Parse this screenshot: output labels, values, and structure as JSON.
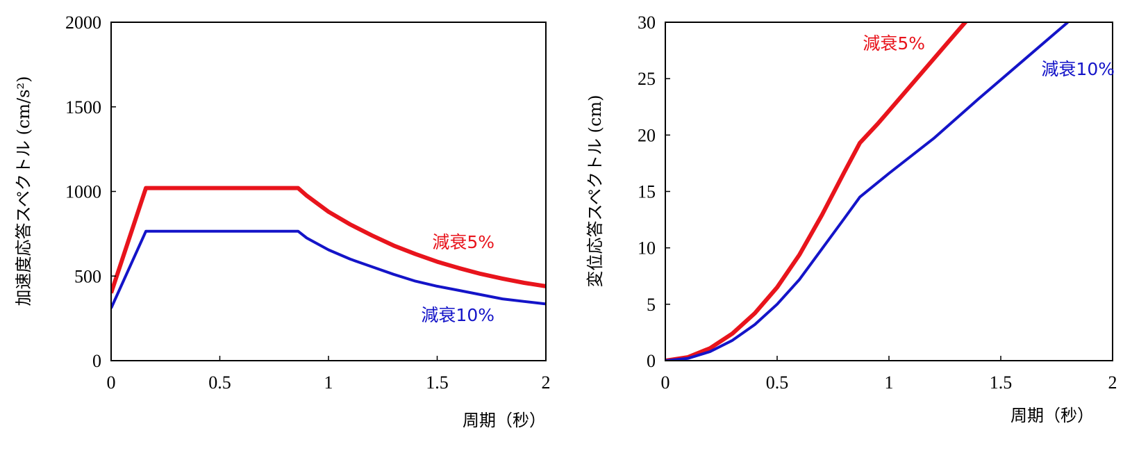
{
  "chart_data": [
    {
      "type": "line",
      "xlabel": "周期（秒）",
      "ylabel": "加速度応答スペクトル (cm/s²)",
      "xlim": [
        0,
        2
      ],
      "ylim": [
        0,
        2000
      ],
      "x_ticks": [
        "0",
        "0.5",
        "1",
        "1.5",
        "2"
      ],
      "y_ticks": [
        "0",
        "500",
        "1000",
        "1500",
        "2000"
      ],
      "grid": false,
      "legend": "inline labels",
      "series": [
        {
          "name": "減衰5%",
          "color": "#e8141c",
          "points": [
            [
              0,
              400
            ],
            [
              0.16,
              1020
            ],
            [
              0.86,
              1020
            ],
            [
              0.9,
              975
            ],
            [
              1.0,
              880
            ],
            [
              1.1,
              805
            ],
            [
              1.2,
              740
            ],
            [
              1.3,
              680
            ],
            [
              1.4,
              630
            ],
            [
              1.5,
              585
            ],
            [
              1.6,
              547
            ],
            [
              1.7,
              513
            ],
            [
              1.8,
              485
            ],
            [
              1.9,
              460
            ],
            [
              2.0,
              440
            ]
          ]
        },
        {
          "name": "減衰10%",
          "color": "#1414c8",
          "points": [
            [
              0,
              310
            ],
            [
              0.16,
              765
            ],
            [
              0.86,
              765
            ],
            [
              0.9,
              725
            ],
            [
              1.0,
              655
            ],
            [
              1.1,
              600
            ],
            [
              1.2,
              555
            ],
            [
              1.3,
              510
            ],
            [
              1.4,
              470
            ],
            [
              1.5,
              440
            ],
            [
              1.6,
              415
            ],
            [
              1.7,
              390
            ],
            [
              1.8,
              365
            ],
            [
              1.9,
              350
            ],
            [
              2.0,
              335
            ]
          ]
        }
      ]
    },
    {
      "type": "line",
      "xlabel": "周期（秒）",
      "ylabel": "変位応答スペクトル (cm)",
      "xlim": [
        0,
        2
      ],
      "ylim": [
        0,
        30
      ],
      "x_ticks": [
        "0",
        "0.5",
        "1",
        "1.5",
        "2"
      ],
      "y_ticks": [
        "0",
        "5",
        "10",
        "15",
        "20",
        "25",
        "30"
      ],
      "grid": false,
      "legend": "inline labels",
      "series": [
        {
          "name": "減衰5%",
          "color": "#e8141c",
          "points": [
            [
              0,
              0
            ],
            [
              0.1,
              0.3
            ],
            [
              0.2,
              1.1
            ],
            [
              0.3,
              2.4
            ],
            [
              0.4,
              4.2
            ],
            [
              0.5,
              6.5
            ],
            [
              0.6,
              9.4
            ],
            [
              0.7,
              12.9
            ],
            [
              0.8,
              16.7
            ],
            [
              0.87,
              19.3
            ],
            [
              0.95,
              21.0
            ],
            [
              1.05,
              23.3
            ],
            [
              1.15,
              25.6
            ],
            [
              1.25,
              27.9
            ],
            [
              1.35,
              30.2
            ]
          ]
        },
        {
          "name": "減衰10%",
          "color": "#1414c8",
          "points": [
            [
              0,
              0
            ],
            [
              0.1,
              0.2
            ],
            [
              0.2,
              0.8
            ],
            [
              0.3,
              1.8
            ],
            [
              0.4,
              3.2
            ],
            [
              0.5,
              5.0
            ],
            [
              0.6,
              7.2
            ],
            [
              0.7,
              9.9
            ],
            [
              0.8,
              12.6
            ],
            [
              0.87,
              14.5
            ],
            [
              1.0,
              16.6
            ],
            [
              1.2,
              19.7
            ],
            [
              1.4,
              23.2
            ],
            [
              1.6,
              26.6
            ],
            [
              1.8,
              30.0
            ]
          ]
        }
      ]
    }
  ]
}
